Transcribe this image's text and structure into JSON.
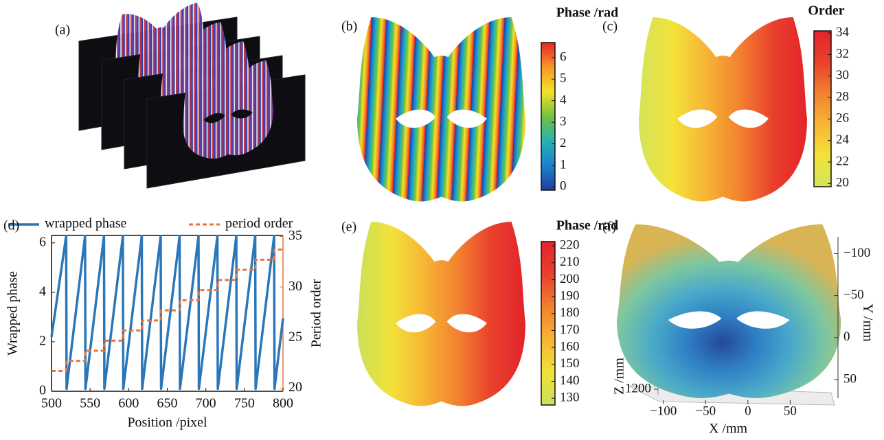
{
  "chart_data": [
    {
      "type": "image",
      "panel": "(a)"
    },
    {
      "type": "heatmap",
      "panel": "(b)",
      "stripes": true,
      "colorbar_title": "Phase /rad",
      "clim": [
        -0.15,
        6.7
      ],
      "cticks": [
        0,
        1,
        2,
        3,
        4,
        5,
        6
      ],
      "colors": [
        "#1f3f9a",
        "#1d7fd0",
        "#26b3b0",
        "#74c043",
        "#f2e325",
        "#f6962a",
        "#e52629"
      ]
    },
    {
      "type": "heatmap",
      "panel": "(c)",
      "stripes": false,
      "colorbar_title": "Order",
      "clim": [
        19.7,
        34.2
      ],
      "cticks": [
        20,
        22,
        24,
        26,
        28,
        30,
        32,
        34
      ],
      "colors": [
        "#d3e45a",
        "#f3e23a",
        "#f7b534",
        "#f2812f",
        "#e9402c",
        "#e3242b"
      ]
    },
    {
      "type": "line",
      "panel": "(d)",
      "x": [
        500,
        519,
        519.5,
        543.5,
        544,
        568,
        568.5,
        592.5,
        593,
        617,
        617.5,
        641.5,
        642,
        666,
        666.5,
        690.5,
        691,
        715,
        715.5,
        739.5,
        740,
        764,
        764.5,
        788.5,
        789,
        800
      ],
      "series": [
        {
          "name": "wrapped phase",
          "color": "#2a76b8",
          "values": [
            2.2,
            6.28,
            0.1,
            6.28,
            0.1,
            6.28,
            0.1,
            6.28,
            0.1,
            6.28,
            0.1,
            6.28,
            0.1,
            6.28,
            0.1,
            6.28,
            0.1,
            6.28,
            0.1,
            6.28,
            0.1,
            6.28,
            0.1,
            6.28,
            0.1,
            2.95
          ]
        },
        {
          "name": "period order",
          "color": "#e8743b",
          "axis": "y2",
          "values": [
            21.7,
            21.7,
            22.7,
            22.7,
            23.7,
            23.7,
            24.7,
            24.7,
            25.7,
            25.7,
            26.7,
            26.7,
            27.7,
            27.7,
            28.7,
            28.7,
            29.7,
            29.7,
            30.7,
            30.7,
            31.7,
            31.7,
            32.7,
            32.7,
            33.7,
            33.7
          ]
        }
      ],
      "xlabel": "Position /pixel",
      "ylabel": "Wrapped phase",
      "y2label": "Period order",
      "xlim": [
        500,
        800
      ],
      "xticks": [
        500,
        550,
        600,
        650,
        700,
        750,
        800
      ],
      "ylim": [
        0,
        6.3
      ],
      "yticks": [
        0,
        2,
        4,
        6
      ],
      "y2lim": [
        19.7,
        35.1
      ],
      "y2ticks": [
        20,
        25,
        30,
        35
      ],
      "legend": "top"
    },
    {
      "type": "heatmap",
      "panel": "(e)",
      "stripes": false,
      "colorbar_title": "Phase /rad",
      "clim": [
        126,
        222.5
      ],
      "cticks": [
        130,
        140,
        150,
        160,
        170,
        180,
        190,
        200,
        210,
        220
      ],
      "colors": [
        "#c9e05a",
        "#f2e23a",
        "#f7b534",
        "#f2812f",
        "#e9402c",
        "#e3242b"
      ]
    },
    {
      "type": "surface3d",
      "panel": "(f)",
      "colors": [
        "#24489a",
        "#2f7fc4",
        "#49a9c9",
        "#7cc7a0",
        "#d9b455"
      ],
      "xlabel": "X /mm",
      "ylabel": "Y /mm",
      "zlabel": "Z /mm",
      "xlim": [
        -125,
        70
      ],
      "xticks": [
        {
          "value": -100,
          "label": "−100"
        },
        {
          "value": -50,
          "label": "−50"
        },
        0,
        50
      ],
      "ylim": [
        -120,
        72
      ],
      "yticks": [
        {
          "value": -100,
          "label": "−100"
        },
        {
          "value": -50,
          "label": "−50"
        },
        0,
        50
      ],
      "zticks": [
        1200
      ]
    }
  ]
}
